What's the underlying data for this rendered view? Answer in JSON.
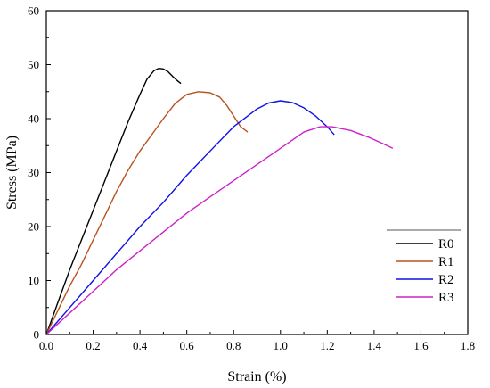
{
  "chart_data": {
    "type": "line",
    "title": "",
    "xlabel": "Strain (%)",
    "ylabel": "Stress (MPa)",
    "xlim": [
      0.0,
      1.8
    ],
    "ylim": [
      0,
      60
    ],
    "xticks": [
      0.0,
      0.2,
      0.4,
      0.6,
      0.8,
      1.0,
      1.2,
      1.4,
      1.6,
      1.8
    ],
    "xtick_labels": [
      "0.0",
      "0.2",
      "0.4",
      "0.6",
      "0.8",
      "1.0",
      "1.2",
      "1.4",
      "1.6",
      "1.8"
    ],
    "yticks": [
      0,
      10,
      20,
      30,
      40,
      50,
      60
    ],
    "ytick_labels": [
      "0",
      "10",
      "20",
      "30",
      "40",
      "50",
      "60"
    ],
    "grid": false,
    "legend_position": "bottom-right",
    "series": [
      {
        "name": "R0",
        "color": "#000000",
        "x": [
          0.0,
          0.05,
          0.1,
          0.15,
          0.2,
          0.25,
          0.3,
          0.35,
          0.4,
          0.43,
          0.46,
          0.48,
          0.5,
          0.52,
          0.54,
          0.56,
          0.575
        ],
        "y": [
          0,
          6,
          12,
          17.5,
          23,
          28.5,
          34,
          39.5,
          44.5,
          47.3,
          48.9,
          49.3,
          49.2,
          48.7,
          47.8,
          47.0,
          46.5
        ]
      },
      {
        "name": "R1",
        "color": "#b8521e",
        "x": [
          0.0,
          0.05,
          0.1,
          0.15,
          0.2,
          0.25,
          0.3,
          0.35,
          0.4,
          0.45,
          0.5,
          0.55,
          0.6,
          0.65,
          0.7,
          0.74,
          0.77,
          0.8,
          0.83,
          0.86
        ],
        "y": [
          0,
          4.5,
          9,
          13,
          17.5,
          22,
          26.5,
          30.5,
          34,
          37,
          40,
          42.8,
          44.5,
          45.0,
          44.8,
          44,
          42.5,
          40.5,
          38.5,
          37.5
        ]
      },
      {
        "name": "R2",
        "color": "#1010e6",
        "x": [
          0.0,
          0.1,
          0.2,
          0.3,
          0.4,
          0.5,
          0.6,
          0.7,
          0.8,
          0.9,
          0.95,
          1.0,
          1.05,
          1.1,
          1.15,
          1.2,
          1.23
        ],
        "y": [
          0,
          5,
          10,
          15,
          20,
          24.5,
          29.5,
          34,
          38.5,
          41.8,
          42.9,
          43.3,
          43.0,
          42,
          40.5,
          38.5,
          37.0
        ]
      },
      {
        "name": "R3",
        "color": "#cc22cc",
        "x": [
          0.0,
          0.1,
          0.2,
          0.3,
          0.4,
          0.5,
          0.6,
          0.7,
          0.8,
          0.9,
          1.0,
          1.1,
          1.17,
          1.22,
          1.3,
          1.38,
          1.44,
          1.48
        ],
        "y": [
          0,
          4,
          8,
          12,
          15.5,
          19,
          22.5,
          25.5,
          28.5,
          31.5,
          34.5,
          37.5,
          38.5,
          38.5,
          37.8,
          36.5,
          35.3,
          34.5
        ]
      }
    ]
  }
}
